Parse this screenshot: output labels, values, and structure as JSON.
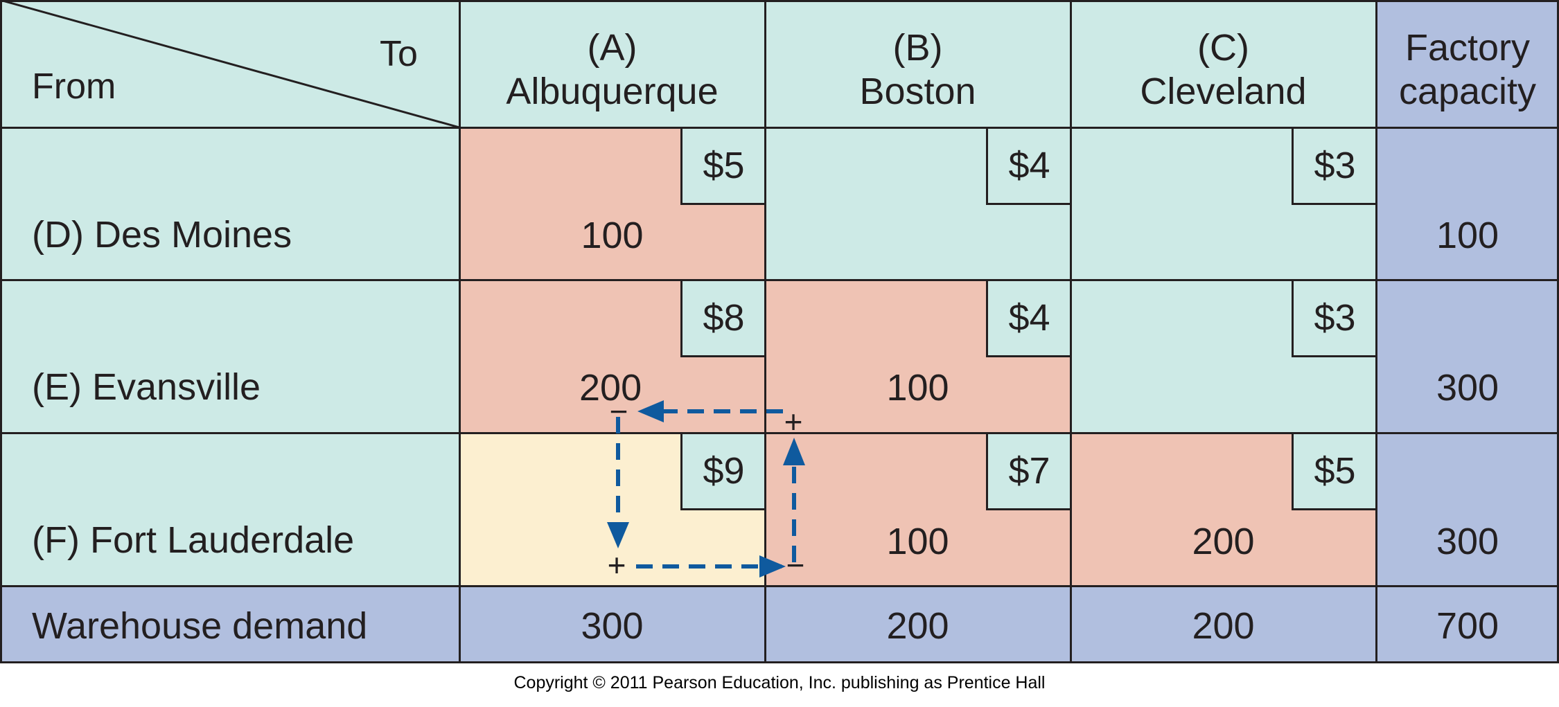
{
  "header": {
    "from_label": "From",
    "to_label": "To",
    "columns": [
      {
        "code": "(A)",
        "name": "Albuquerque"
      },
      {
        "code": "(B)",
        "name": "Boston"
      },
      {
        "code": "(C)",
        "name": "Cleveland"
      }
    ],
    "capacity_label_line1": "Factory",
    "capacity_label_line2": "capacity"
  },
  "rows": [
    {
      "label": "(D) Des Moines",
      "costs": [
        "$5",
        "$4",
        "$3"
      ],
      "shipments": [
        "100",
        "",
        ""
      ],
      "capacity": "100"
    },
    {
      "label": "(E) Evansville",
      "costs": [
        "$8",
        "$4",
        "$3"
      ],
      "shipments": [
        "200",
        "100",
        ""
      ],
      "capacity": "300"
    },
    {
      "label": "(F) Fort Lauderdale",
      "costs": [
        "$9",
        "$7",
        "$5"
      ],
      "shipments": [
        "",
        "100",
        "200"
      ],
      "capacity": "300"
    }
  ],
  "demand": {
    "label": "Warehouse demand",
    "values": [
      "300",
      "200",
      "200"
    ],
    "total": "700"
  },
  "path_signs": {
    "evansville_albuquerque": "−",
    "evansville_boston": "+",
    "fort_lauderdale_albuquerque": "+",
    "fort_lauderdale_boston": "−"
  },
  "copyright": "Copyright © 2011 Pearson Education, Inc. publishing as Prentice Hall",
  "colors": {
    "header_teal": "#cdeae6",
    "occupied_salmon": "#efc3b4",
    "empty_teal": "#cdeae6",
    "candidate_cream": "#fcefd0",
    "capacity_blue": "#b1bfdf",
    "arrow_blue": "#0f5a9e",
    "border": "#231f20"
  }
}
